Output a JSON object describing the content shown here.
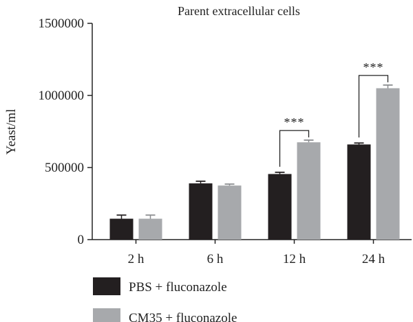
{
  "chart_data": {
    "type": "bar",
    "title": "Parent extracellular cells",
    "xlabel": "",
    "ylabel": "Yeast/ml",
    "ylim": [
      0,
      1500000
    ],
    "yticks": [
      0,
      500000,
      1000000,
      1500000
    ],
    "ytick_labels": [
      "0",
      "500000",
      "1000000",
      "1500000"
    ],
    "categories": [
      "2 h",
      "6 h",
      "12 h",
      "24 h"
    ],
    "series": [
      {
        "name": "PBS + fluconazole",
        "color": "#231f20",
        "values": [
          145000,
          390000,
          455000,
          660000
        ],
        "errors": [
          25000,
          15000,
          12000,
          10000
        ]
      },
      {
        "name": "CM35 + fluconazole",
        "color": "#a7a9ac",
        "values": [
          145000,
          375000,
          675000,
          1050000
        ],
        "errors": [
          25000,
          10000,
          15000,
          22000
        ]
      }
    ],
    "annotations": [
      {
        "category": "12 h",
        "text": "***"
      },
      {
        "category": "24 h",
        "text": "***"
      }
    ],
    "legend_position": "bottom-left",
    "grid": false
  }
}
